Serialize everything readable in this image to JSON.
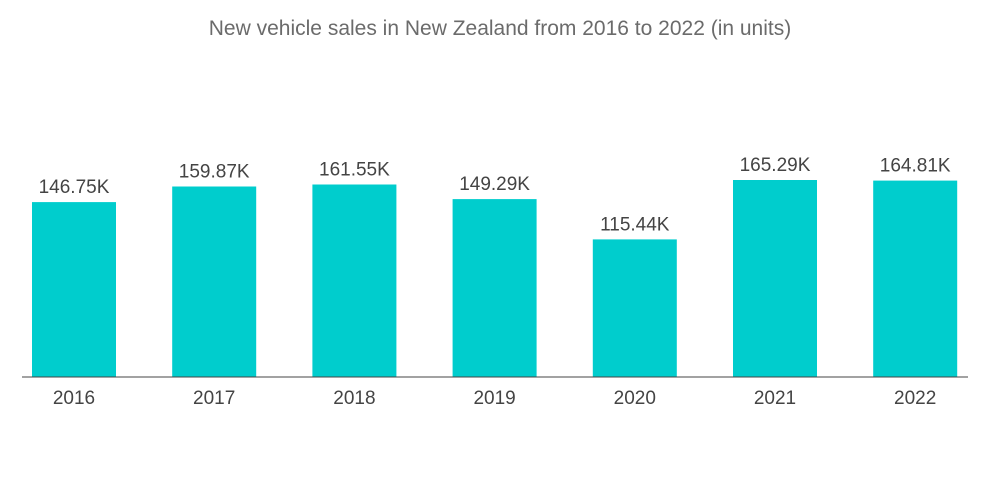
{
  "chart_data": {
    "type": "bar",
    "title": "New vehicle sales in New Zealand from 2016 to 2022 (in units)",
    "categories": [
      "2016",
      "2017",
      "2018",
      "2019",
      "2020",
      "2021",
      "2022"
    ],
    "values": [
      146750,
      159870,
      161550,
      149290,
      115440,
      165290,
      164810
    ],
    "data_labels": [
      "146.75K",
      "159.87K",
      "161.55K",
      "149.29K",
      "115.44K",
      "165.29K",
      "164.81K"
    ],
    "xlabel": "",
    "ylabel": "",
    "ylim": [
      0,
      165290
    ],
    "grid": false,
    "legend": "none",
    "bar_color": "#00CDCD",
    "axis_color": "#444444"
  }
}
